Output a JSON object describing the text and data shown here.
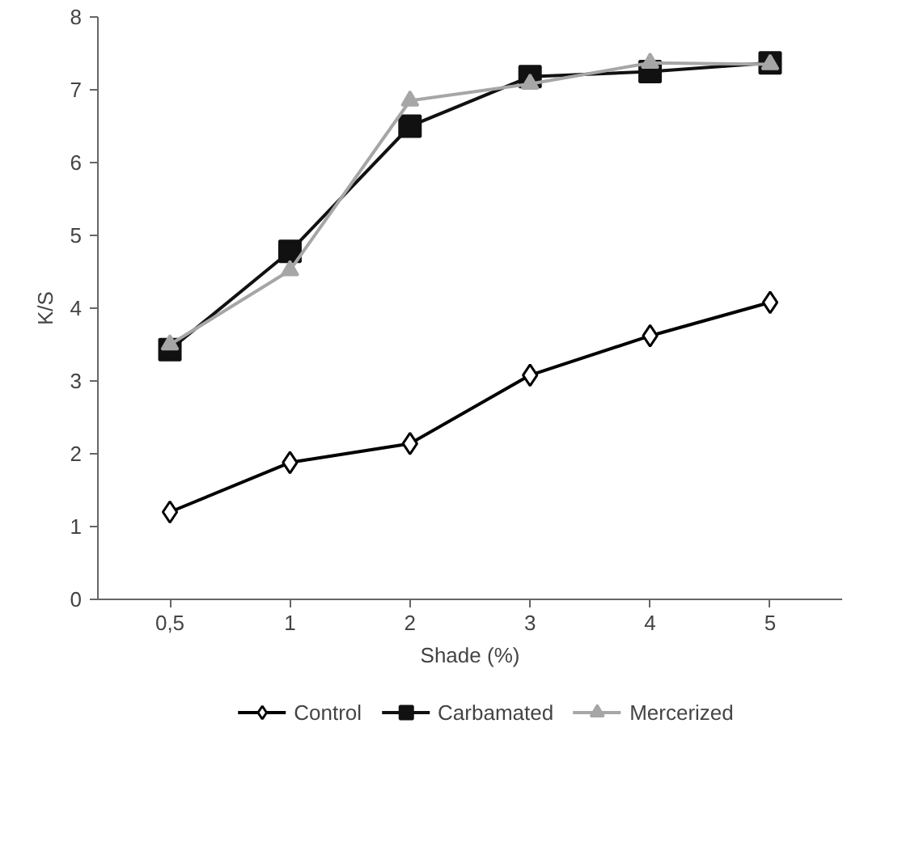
{
  "chart_data": {
    "type": "line",
    "xlabel": "Shade (%)",
    "ylabel": "K/S",
    "categories": [
      "0,5",
      "1",
      "2",
      "3",
      "4",
      "5"
    ],
    "series": [
      {
        "name": "Control",
        "color": "#000000",
        "marker": "diamond",
        "values": [
          1.2,
          1.88,
          2.14,
          3.08,
          3.62,
          4.08
        ]
      },
      {
        "name": "Carbamated",
        "color": "#111111",
        "marker": "square",
        "values": [
          3.43,
          4.78,
          6.5,
          7.18,
          7.25,
          7.37
        ]
      },
      {
        "name": "Mercerized",
        "color": "#a6a6a6",
        "marker": "triangle",
        "values": [
          3.5,
          4.52,
          6.85,
          7.08,
          7.37,
          7.35
        ]
      }
    ],
    "ylim": [
      0,
      8
    ],
    "yticks": [
      0,
      1,
      2,
      3,
      4,
      5,
      6,
      7,
      8
    ],
    "grid": false,
    "legend": "bottom"
  }
}
